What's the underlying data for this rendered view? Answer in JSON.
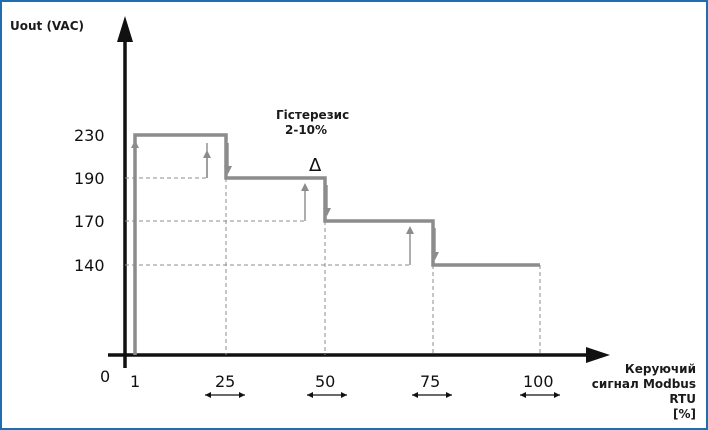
{
  "y_axis": {
    "title": "Uout (VAC)",
    "ticks": [
      "230",
      "190",
      "170",
      "140"
    ]
  },
  "x_axis": {
    "origin_label": "0",
    "ticks": [
      "1",
      "25",
      "50",
      "75",
      "100"
    ],
    "title_lines": [
      "Керуючий",
      "сигнал Modbus",
      "RTU",
      "[%]"
    ]
  },
  "hysteresis_note": {
    "line1": "Гістерезис",
    "line2": "2-10%"
  },
  "delta_symbol": "Δ",
  "colors": {
    "frame": "#1f6fb0",
    "step_line": "#8c8c8c",
    "axis": "#111111"
  }
}
